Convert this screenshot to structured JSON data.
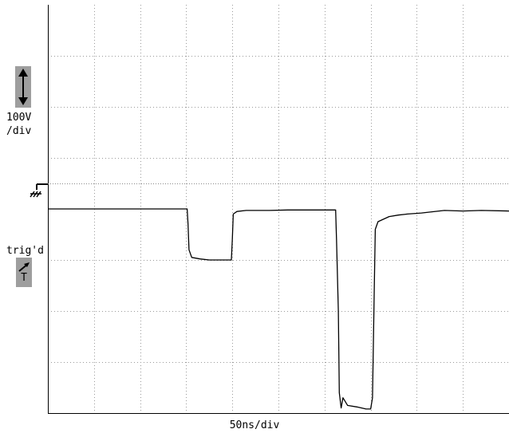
{
  "scope": {
    "vertical_scale": "100V\n/div",
    "vertical_scale_line1": "100V",
    "vertical_scale_line2": "/div",
    "trigger_status": "trig'd",
    "trigger_marker": "T",
    "time_scale": "50ns/div",
    "icons": [
      "vertical-scale-arrows-icon",
      "ground-reference-icon",
      "trigger-slope-icon"
    ],
    "colors": {
      "trace": "#000000",
      "grid": "#9a9a9a",
      "badge": "#9e9e9e"
    }
  },
  "chart_data": {
    "type": "line",
    "title": "",
    "xlabel": "50ns/div",
    "ylabel": "100V/div",
    "xunit": "ns",
    "yunit": "V",
    "xlim": [
      0,
      500
    ],
    "ylim": [
      -400,
      400
    ],
    "x_divisions": 10,
    "y_divisions": 8,
    "grid": true,
    "series": [
      {
        "points": [
          [
            0,
            0
          ],
          [
            151,
            0
          ],
          [
            152,
            -30
          ],
          [
            153,
            -80
          ],
          [
            156,
            -95
          ],
          [
            165,
            -98
          ],
          [
            175,
            -100
          ],
          [
            190,
            -100
          ],
          [
            199,
            -100
          ],
          [
            200,
            -60
          ],
          [
            201,
            -10
          ],
          [
            205,
            -5
          ],
          [
            215,
            -3
          ],
          [
            240,
            -3
          ],
          [
            260,
            -2
          ],
          [
            290,
            -2
          ],
          [
            312,
            -2
          ],
          [
            313,
            -60
          ],
          [
            315,
            -200
          ],
          [
            316,
            -360
          ],
          [
            318,
            -390
          ],
          [
            320,
            -370
          ],
          [
            325,
            -385
          ],
          [
            335,
            -388
          ],
          [
            345,
            -392
          ],
          [
            350,
            -392
          ],
          [
            352,
            -370
          ],
          [
            354,
            -150
          ],
          [
            355,
            -40
          ],
          [
            358,
            -25
          ],
          [
            370,
            -15
          ],
          [
            380,
            -12
          ],
          [
            390,
            -10
          ],
          [
            405,
            -8
          ],
          [
            430,
            -3
          ],
          [
            450,
            -4
          ],
          [
            470,
            -3
          ],
          [
            500,
            -4
          ]
        ]
      }
    ]
  }
}
